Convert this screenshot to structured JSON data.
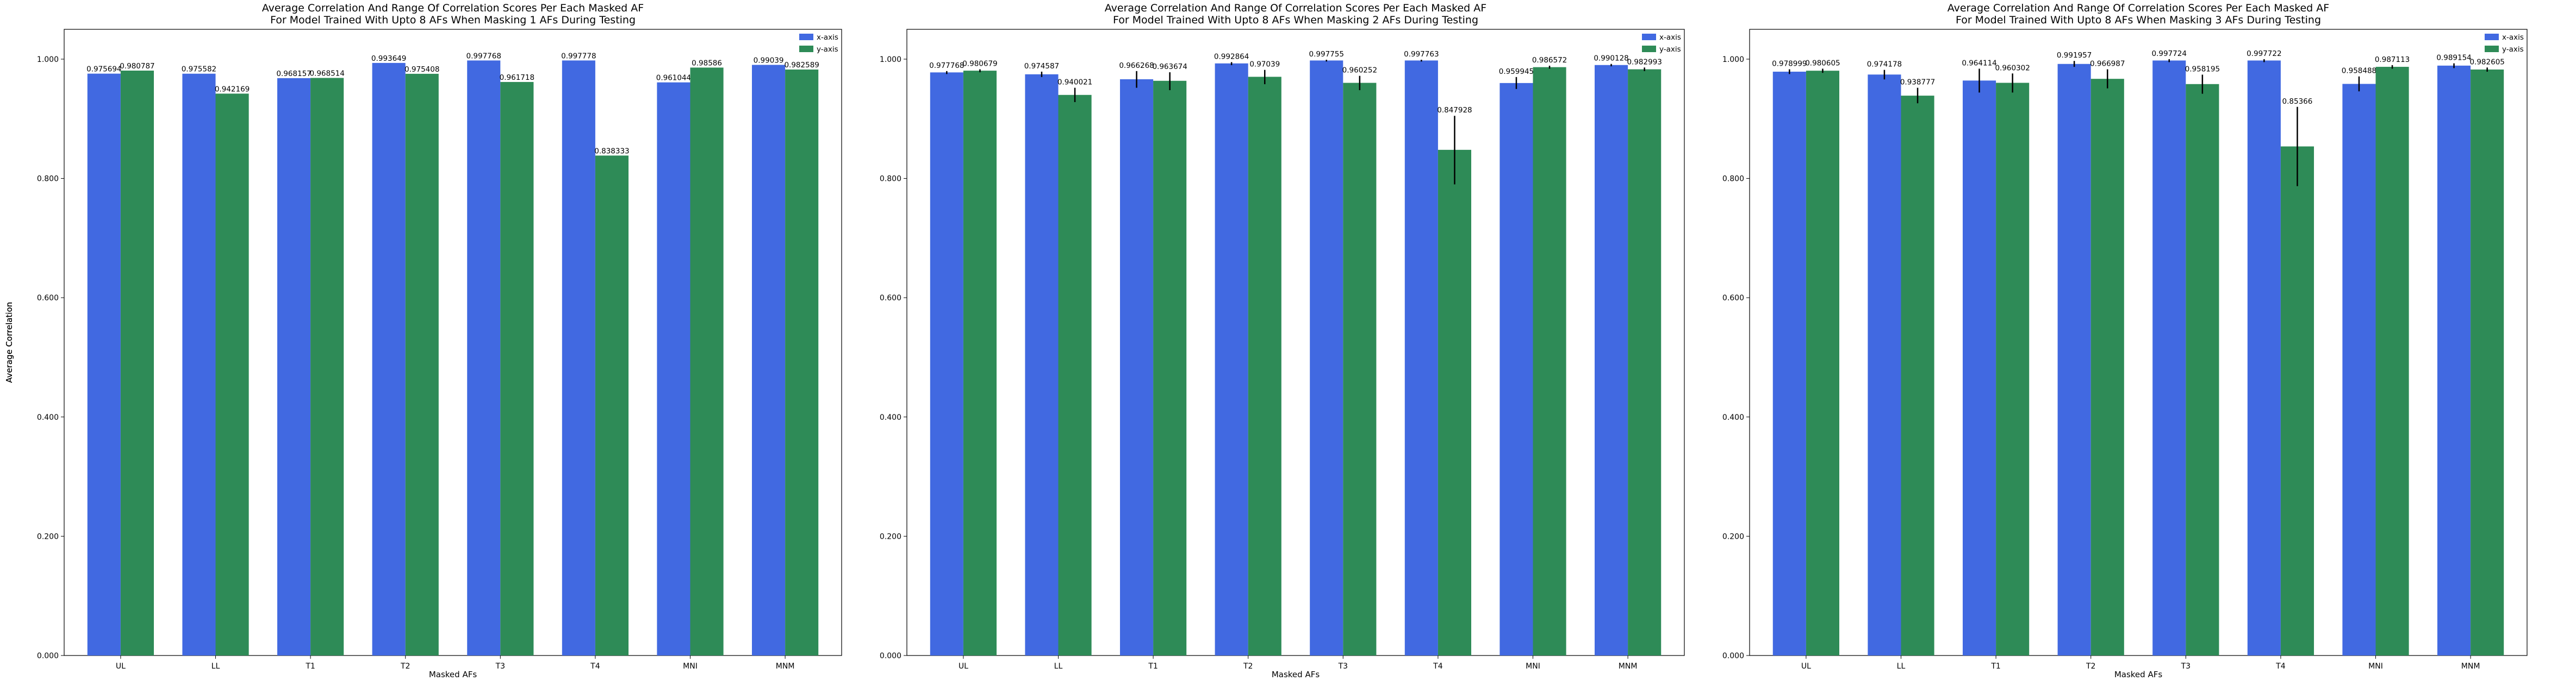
{
  "colors": {
    "x_axis": "#4169e1",
    "y_axis": "#2e8b57",
    "error_bar": "#000000"
  },
  "chart_data": [
    {
      "type": "bar",
      "title": "Average Correlation And Range Of Correlation Scores Per Each Masked AF\nFor Model Trained With Upto 8 AFs When Masking 1 AFs During Testing",
      "xlabel": "Masked AFs",
      "ylabel": "Average Correlation",
      "ylim": [
        0,
        1.05
      ],
      "yticks": [
        "0.000",
        "0.200",
        "0.400",
        "0.600",
        "0.800",
        "1.000"
      ],
      "grid": false,
      "legend_position": "top-right",
      "categories": [
        "UL",
        "LL",
        "T1",
        "T2",
        "T3",
        "T4",
        "MNI",
        "MNM"
      ],
      "series": [
        {
          "name": "x-axis",
          "values": [
            0.975694,
            0.975582,
            0.968157,
            0.993649,
            0.997768,
            0.997778,
            0.961044,
            0.99039
          ],
          "labels": [
            "0.975694",
            "0.975582",
            "0.968157",
            "0.993649",
            "0.997768",
            "0.997778",
            "0.961044",
            "0.99039"
          ],
          "error_ranges": [
            null,
            null,
            null,
            null,
            null,
            null,
            null,
            null
          ]
        },
        {
          "name": "y-axis",
          "values": [
            0.980787,
            0.942169,
            0.968514,
            0.975408,
            0.961718,
            0.838333,
            0.98586,
            0.982589
          ],
          "labels": [
            "0.980787",
            "0.942169",
            "0.968514",
            "0.975408",
            "0.961718",
            "0.838333",
            "0.98586",
            "0.982589"
          ],
          "error_ranges": [
            null,
            null,
            null,
            null,
            null,
            null,
            null,
            null
          ]
        }
      ]
    },
    {
      "type": "bar",
      "title": "Average Correlation And Range Of Correlation Scores Per Each Masked AF\nFor Model Trained With Upto 8 AFs When Masking 2 AFs During Testing",
      "xlabel": "Masked AFs",
      "ylabel": "Average Correlation",
      "ylim": [
        0,
        1.05
      ],
      "yticks": [
        "0.000",
        "0.200",
        "0.400",
        "0.600",
        "0.800",
        "1.000"
      ],
      "grid": false,
      "legend_position": "top-right",
      "categories": [
        "UL",
        "LL",
        "T1",
        "T2",
        "T3",
        "T4",
        "MNI",
        "MNM"
      ],
      "series": [
        {
          "name": "x-axis",
          "values": [
            0.977768,
            0.974587,
            0.966268,
            0.992864,
            0.997755,
            0.997763,
            0.959945,
            0.990128
          ],
          "labels": [
            "0.977768",
            "0.974587",
            "0.966268",
            "0.992864",
            "0.997755",
            "0.997763",
            "0.959945",
            "0.990128"
          ],
          "error_ranges": [
            [
              0.975,
              0.98
            ],
            [
              0.97,
              0.979
            ],
            [
              0.952,
              0.98
            ],
            [
              0.99,
              0.995
            ],
            [
              0.996,
              0.999
            ],
            [
              0.996,
              0.999
            ],
            [
              0.95,
              0.97
            ],
            [
              0.988,
              0.992
            ]
          ]
        },
        {
          "name": "y-axis",
          "values": [
            0.980679,
            0.940021,
            0.963674,
            0.97039,
            0.960252,
            0.847928,
            0.986572,
            0.982993
          ],
          "labels": [
            "0.980679",
            "0.940021",
            "0.963674",
            "0.97039",
            "0.960252",
            "0.847928",
            "0.986572",
            "0.982993"
          ],
          "error_ranges": [
            [
              0.978,
              0.983
            ],
            [
              0.928,
              0.952
            ],
            [
              0.948,
              0.978
            ],
            [
              0.958,
              0.982
            ],
            [
              0.948,
              0.972
            ],
            [
              0.79,
              0.905
            ],
            [
              0.984,
              0.989
            ],
            [
              0.98,
              0.986
            ]
          ]
        }
      ]
    },
    {
      "type": "bar",
      "title": "Average Correlation And Range Of Correlation Scores Per Each Masked AF\nFor Model Trained With Upto 8 AFs When Masking 3 AFs During Testing",
      "xlabel": "Masked AFs",
      "ylabel": "Average Correlation",
      "ylim": [
        0,
        1.05
      ],
      "yticks": [
        "0.000",
        "0.200",
        "0.400",
        "0.600",
        "0.800",
        "1.000"
      ],
      "grid": false,
      "legend_position": "top-right",
      "categories": [
        "UL",
        "LL",
        "T1",
        "T2",
        "T3",
        "T4",
        "MNI",
        "MNM"
      ],
      "series": [
        {
          "name": "x-axis",
          "values": [
            0.978999,
            0.974178,
            0.964114,
            0.991957,
            0.997724,
            0.997722,
            0.958488,
            0.989154
          ],
          "labels": [
            "0.978999",
            "0.974178",
            "0.964114",
            "0.991957",
            "0.997724",
            "0.997722",
            "0.958488",
            "0.989154"
          ],
          "error_ranges": [
            [
              0.975,
              0.983
            ],
            [
              0.966,
              0.982
            ],
            [
              0.944,
              0.984
            ],
            [
              0.987,
              0.997
            ],
            [
              0.995,
              1.0
            ],
            [
              0.995,
              1.0
            ],
            [
              0.946,
              0.971
            ],
            [
              0.985,
              0.993
            ]
          ]
        },
        {
          "name": "y-axis",
          "values": [
            0.980605,
            0.938777,
            0.960302,
            0.966987,
            0.958195,
            0.85366,
            0.987113,
            0.982605
          ],
          "labels": [
            "0.980605",
            "0.938777",
            "0.960302",
            "0.966987",
            "0.958195",
            "0.85366",
            "0.987113",
            "0.982605"
          ],
          "error_ranges": [
            [
              0.977,
              0.984
            ],
            [
              0.926,
              0.952
            ],
            [
              0.944,
              0.976
            ],
            [
              0.951,
              0.983
            ],
            [
              0.942,
              0.974
            ],
            [
              0.787,
              0.92
            ],
            [
              0.984,
              0.99
            ],
            [
              0.979,
              0.986
            ]
          ]
        }
      ]
    }
  ]
}
